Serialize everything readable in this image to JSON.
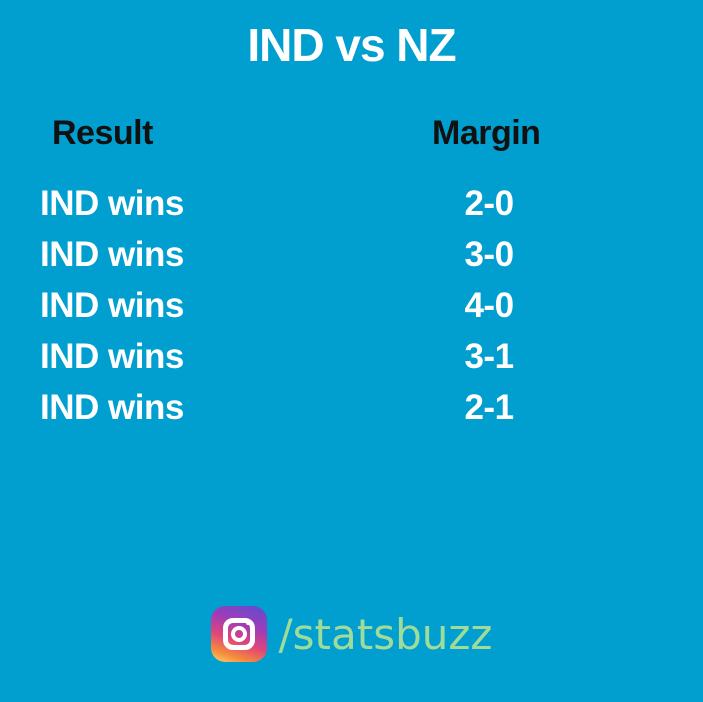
{
  "title": "IND vs NZ",
  "table": {
    "headers": {
      "result": "Result",
      "margin": "Margin"
    },
    "rows": [
      {
        "result": "IND wins",
        "margin": "2-0"
      },
      {
        "result": "IND wins",
        "margin": "3-0"
      },
      {
        "result": "IND wins",
        "margin": "4-0"
      },
      {
        "result": "IND wins",
        "margin": "3-1"
      },
      {
        "result": "IND wins",
        "margin": "2-1"
      }
    ]
  },
  "footer": {
    "icon": "instagram-icon",
    "handle": "/statsbuzz"
  },
  "colors": {
    "background": "#009fd0",
    "title": "#ffffff",
    "header": "#111111",
    "cell": "#ffffff",
    "handle": "#9fdc9a"
  }
}
